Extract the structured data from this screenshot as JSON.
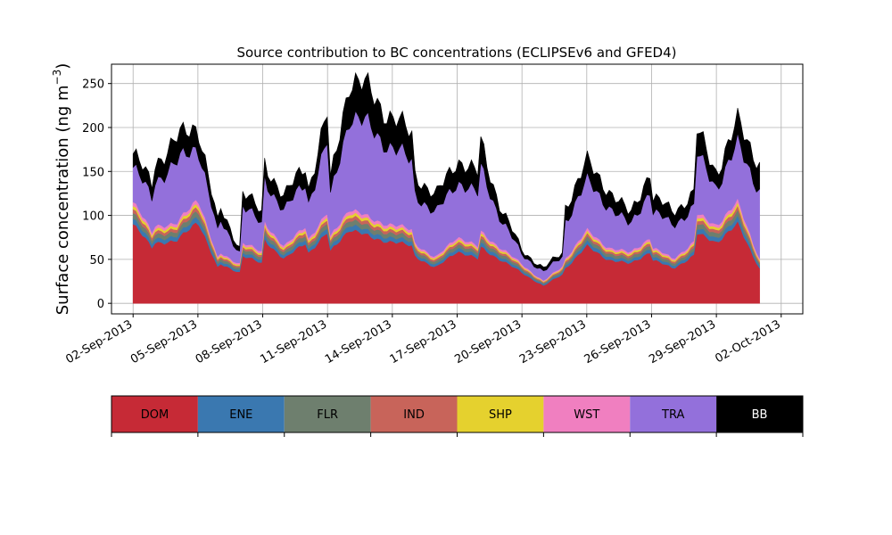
{
  "chart_data": {
    "type": "area",
    "stacked": true,
    "title": "Source contribution to BC concentrations (ECLIPSEv6 and GFED4)",
    "ylabel_main": "Surface concentration (ng m",
    "ylabel_sup": "−3",
    "ylabel_close": ")",
    "xlim": [
      "2013-09-01",
      "2013-10-03"
    ],
    "ylim": [
      -12,
      272
    ],
    "x_start": "2013-09-02",
    "x_end": "2013-10-01",
    "yticks": [
      0,
      50,
      100,
      150,
      200,
      250
    ],
    "ytick_labels": [
      "0",
      "50",
      "100",
      "150",
      "200",
      "250"
    ],
    "xticks": [
      "2013-09-02",
      "2013-09-05",
      "2013-09-08",
      "2013-09-11",
      "2013-09-14",
      "2013-09-17",
      "2013-09-20",
      "2013-09-23",
      "2013-09-26",
      "2013-09-29",
      "2013-10-02"
    ],
    "xtick_labels": [
      "02-Sep-2013",
      "05-Sep-2013",
      "08-Sep-2013",
      "11-Sep-2013",
      "14-Sep-2013",
      "17-Sep-2013",
      "20-Sep-2013",
      "23-Sep-2013",
      "26-Sep-2013",
      "29-Sep-2013",
      "02-Oct-2013"
    ],
    "grid": true,
    "x_date_keyframes": [
      "2013-09-02",
      "2013-09-03",
      "2013-09-03",
      "2013-09-04",
      "2013-09-05",
      "2013-09-06",
      "2013-09-06",
      "2013-09-07",
      "2013-09-07",
      "2013-09-08",
      "2013-09-08",
      "2013-09-09",
      "2013-09-10",
      "2013-09-10",
      "2013-09-11",
      "2013-09-11",
      "2013-09-12",
      "2013-09-13",
      "2013-09-14",
      "2013-09-15",
      "2013-09-15",
      "2013-09-16",
      "2013-09-17",
      "2013-09-18",
      "2013-09-18",
      "2013-09-19",
      "2013-09-20",
      "2013-09-21",
      "2013-09-22",
      "2013-09-22",
      "2013-09-23",
      "2013-09-24",
      "2013-09-25",
      "2013-09-26",
      "2013-09-26",
      "2013-09-27",
      "2013-09-28",
      "2013-09-28",
      "2013-09-29",
      "2013-09-30",
      "2013-10-01"
    ],
    "total_keyframes": [
      170,
      130,
      160,
      185,
      205,
      80,
      110,
      60,
      130,
      100,
      165,
      120,
      160,
      120,
      215,
      120,
      255,
      240,
      210,
      190,
      150,
      120,
      165,
      145,
      190,
      110,
      60,
      40,
      60,
      110,
      160,
      130,
      100,
      155,
      120,
      105,
      125,
      200,
      150,
      205,
      160
    ],
    "dom_keyframes": [
      90,
      60,
      70,
      70,
      95,
      35,
      45,
      35,
      55,
      45,
      75,
      50,
      70,
      55,
      80,
      55,
      85,
      75,
      70,
      65,
      55,
      40,
      60,
      50,
      65,
      50,
      35,
      20,
      35,
      40,
      65,
      50,
      45,
      60,
      50,
      40,
      55,
      80,
      70,
      90,
      40
    ],
    "series": [
      {
        "name": "DOM",
        "color": "#c62a36",
        "ratio": 1.0
      },
      {
        "name": "ENE",
        "color": "#3a78b0",
        "ratio": 0.07
      },
      {
        "name": "FLR",
        "color": "#6e7f6e",
        "ratio": 0.07
      },
      {
        "name": "IND",
        "color": "#c8645a",
        "ratio": 0.05
      },
      {
        "name": "SHP",
        "color": "#e5d12e",
        "ratio": 0.04
      },
      {
        "name": "WST",
        "color": "#f07fc0",
        "ratio": 0.05
      },
      {
        "name": "TRA",
        "color": "#9370db",
        "ratio": null
      },
      {
        "name": "BB",
        "color": "#000000",
        "ratio": null
      }
    ],
    "tra_fraction_of_remainder": 0.72,
    "legend_placement": "bottom colorbar"
  }
}
